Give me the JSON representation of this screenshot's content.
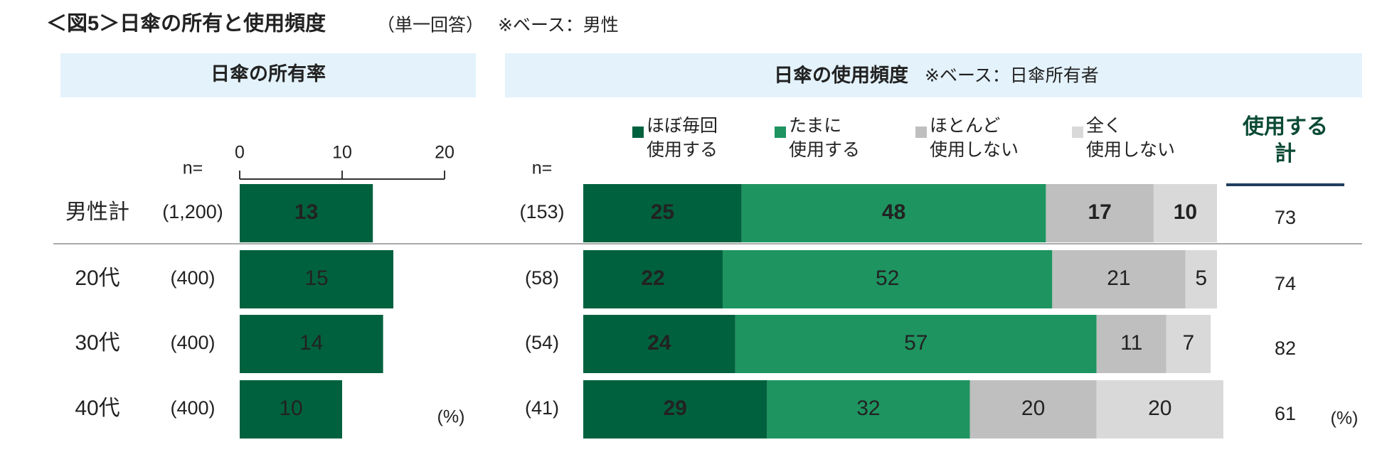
{
  "header": {
    "title": "＜図5＞日傘の所有と使用頻度",
    "note": "（単一回答）",
    "base": "※ベース：男性"
  },
  "chart_data": [
    {
      "type": "bar",
      "title": "日傘の所有率",
      "n_label": "n=",
      "categories": [
        "男性計",
        "20代",
        "30代",
        "40代"
      ],
      "n": [
        "(1,200)",
        "(400)",
        "(400)",
        "(400)"
      ],
      "values": [
        13,
        15,
        14,
        10
      ],
      "color": "#00613f",
      "xlim": [
        0,
        20
      ],
      "xticks": [
        0,
        10,
        20
      ],
      "unit": "(%)"
    },
    {
      "type": "stacked_bar",
      "title": "日傘の使用頻度",
      "subtitle": "※ベース：日傘所有者",
      "n_label": "n=",
      "n": [
        "(153)",
        "(58)",
        "(54)",
        "(41)"
      ],
      "xlim": [
        0,
        100
      ],
      "series": [
        {
          "name": "ほぼ毎回\n使用する",
          "color": "#00613f",
          "values": [
            25,
            22,
            24,
            29
          ]
        },
        {
          "name": "たまに\n使用する",
          "color": "#1e9460",
          "values": [
            48,
            52,
            57,
            32
          ]
        },
        {
          "name": "ほとんど\n使用しない",
          "color": "#bfbfbf",
          "values": [
            17,
            21,
            11,
            20
          ]
        },
        {
          "name": "全く\n使用しない",
          "color": "#d9d9d9",
          "values": [
            10,
            5,
            7,
            20
          ]
        }
      ],
      "total": {
        "name": "使用する\n計",
        "values": [
          73,
          74,
          82,
          61
        ]
      },
      "unit": "(%)"
    }
  ]
}
